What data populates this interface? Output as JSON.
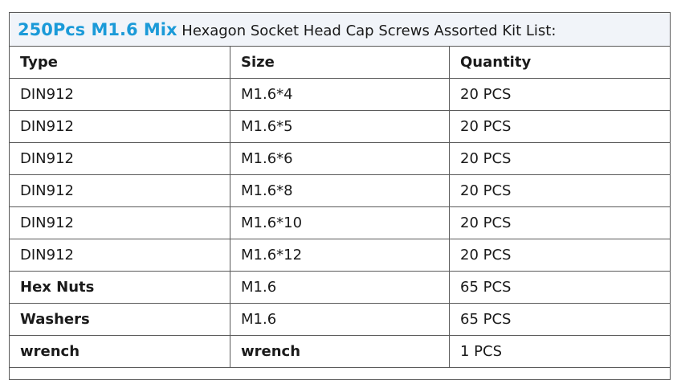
{
  "title": {
    "highlight": "250Pcs M1.6 Mix",
    "text": "Hexagon Socket Head Cap Screws Assorted Kit List:"
  },
  "table": {
    "header": [
      "Type",
      "Size",
      "Quantity"
    ],
    "rows": [
      [
        "DIN912",
        "M1.6*4",
        "20 PCS"
      ],
      [
        "DIN912",
        "M1.6*5",
        "20 PCS"
      ],
      [
        "DIN912",
        "M1.6*6",
        "20 PCS"
      ],
      [
        "DIN912",
        "M1.6*8",
        "20 PCS"
      ],
      [
        "DIN912",
        "M1.6*10",
        "20 PCS"
      ],
      [
        "DIN912",
        "M1.6*12",
        "20 PCS"
      ],
      [
        "Hex Nuts",
        "M1.6",
        "65 PCS"
      ],
      [
        "Washers",
        "M1.6",
        "65 PCS"
      ],
      [
        "wrench",
        "wrench",
        "1 PCS"
      ]
    ]
  }
}
